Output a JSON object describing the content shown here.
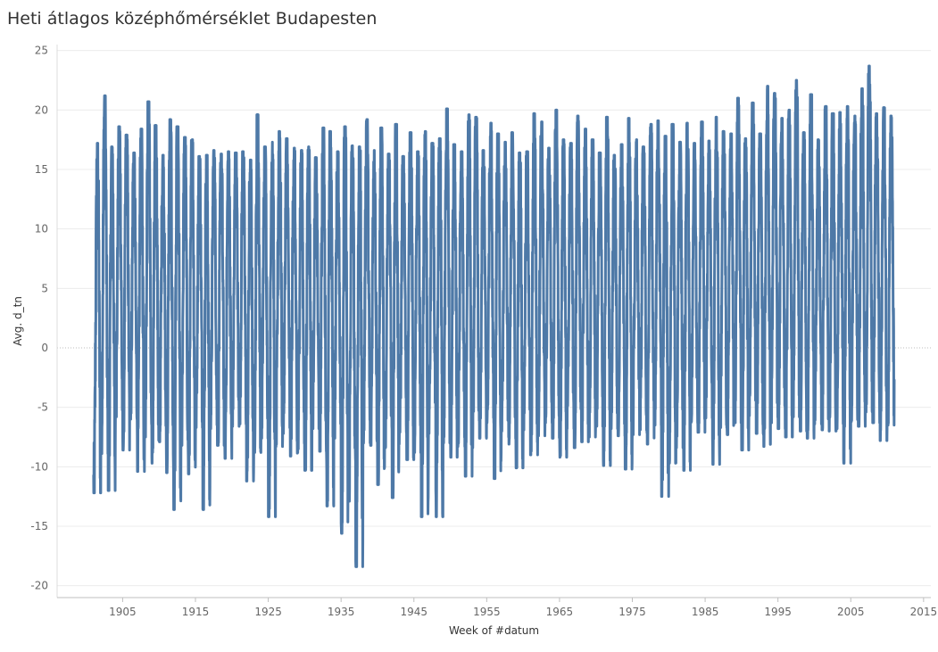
{
  "chart_data": {
    "type": "line",
    "title": "Heti átlagos középhőmérséklet Budapesten",
    "xlabel": "Week of #datum",
    "ylabel": "Avg. d_tn",
    "xlim": [
      1896,
      2016
    ],
    "ylim": [
      -21,
      25.5
    ],
    "x_ticks": [
      "1905",
      "1915",
      "1925",
      "1935",
      "1945",
      "1955",
      "1965",
      "1975",
      "1985",
      "1995",
      "2005",
      "2015"
    ],
    "y_ticks": [
      "25",
      "20",
      "15",
      "10",
      "5",
      "0",
      "-5",
      "-10",
      "-15",
      "-20"
    ],
    "grid": true,
    "zero_line": true,
    "series": [
      {
        "color": "#4e79a7",
        "x_start": 1901,
        "x_end": 2011,
        "annual_summer_peaks": [
          17.2,
          21.2,
          16.9,
          18.6,
          17.9,
          16.4,
          18.4,
          20.7,
          18.7,
          16.2,
          19.2,
          18.6,
          17.7,
          17.5,
          16.1,
          16.2,
          16.6,
          16.3,
          16.5,
          16.4,
          16.5,
          15.8,
          19.6,
          16.9,
          17.3,
          18.2,
          17.6,
          16.8,
          16.6,
          16.9,
          16.0,
          18.5,
          18.2,
          16.5,
          18.6,
          17.0,
          16.9,
          19.2,
          16.6,
          18.5,
          16.3,
          18.8,
          16.1,
          18.1,
          16.5,
          18.2,
          17.2,
          17.6,
          20.1,
          17.1,
          16.5,
          19.6,
          19.4,
          16.6,
          18.9,
          18.0,
          17.3,
          18.1,
          16.4,
          16.5,
          19.7,
          19.0,
          16.8,
          20.0,
          17.5,
          17.2,
          19.5,
          18.4,
          17.5,
          16.4,
          19.4,
          16.2,
          17.1,
          19.3,
          17.5,
          16.9,
          18.8,
          19.1,
          17.8,
          18.8,
          17.3,
          18.9,
          17.2,
          19.0,
          17.4,
          19.4,
          18.2,
          18.0,
          21.0,
          17.6,
          20.6,
          18.0,
          22.0,
          21.4,
          19.3,
          20.0,
          22.5,
          18.1,
          21.3,
          17.5,
          20.3,
          19.7,
          19.8,
          20.3,
          19.5,
          21.8,
          23.7,
          19.7,
          20.2,
          19.5
        ],
        "annual_winter_troughs": [
          -12.2,
          -8.9,
          -12.0,
          -5.8,
          -8.6,
          -6.0,
          -10.4,
          -7.5,
          -9.7,
          -7.9,
          -10.5,
          -13.6,
          -8.2,
          -10.6,
          -6.7,
          -13.6,
          -6.8,
          -8.2,
          -9.3,
          -6.6,
          -6.4,
          -11.2,
          -8.8,
          -7.6,
          -14.2,
          -8.3,
          -7.2,
          -9.1,
          -8.8,
          -10.3,
          -6.8,
          -8.7,
          -13.3,
          -7.6,
          -15.6,
          -12.9,
          -18.4,
          -8.0,
          -8.2,
          -11.5,
          -8.4,
          -12.6,
          -7.1,
          -9.4,
          -8.8,
          -14.2,
          -7.2,
          -14.2,
          -8.0,
          -9.2,
          -8.3,
          -10.8,
          -8.4,
          -7.6,
          -6.3,
          -11.0,
          -7.0,
          -8.1,
          -10.1,
          -6.9,
          -9.0,
          -7.4,
          -6.3,
          -7.6,
          -9.2,
          -6.8,
          -8.4,
          -7.9,
          -7.5,
          -6.6,
          -9.9,
          -6.8,
          -7.4,
          -10.2,
          -7.3,
          -6.9,
          -8.1,
          -6.5,
          -12.5,
          -9.7,
          -8.4,
          -10.3,
          -6.3,
          -7.1,
          -5.9,
          -9.8,
          -6.7,
          -7.3,
          -6.3,
          -8.6,
          -5.7,
          -7.2,
          -8.3,
          -6.3,
          -6.8,
          -7.5,
          -5.8,
          -7.0,
          -7.6,
          -6.4,
          -6.9,
          -7.0,
          -6.8,
          -9.7,
          -6.2,
          -6.6,
          -5.4,
          -6.3,
          -7.8,
          -6.5
        ]
      }
    ]
  }
}
